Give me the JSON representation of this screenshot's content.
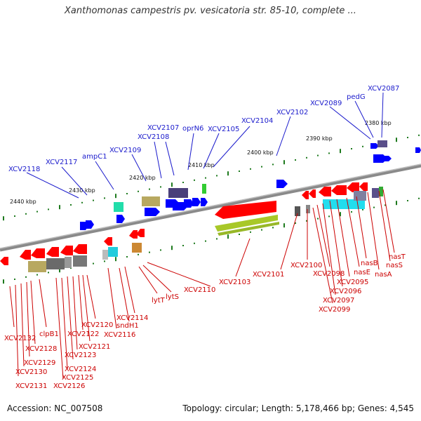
{
  "title": "Xanthomonas campestris pv. vesicatoria str. 85-10, complete ...",
  "footer": {
    "accession": "Accession: NC_007508",
    "summary": "Topology: circular; Length: 5,178,466 bp; Genes: 4,545"
  },
  "kbp_labels": [
    "2380 kbp",
    "2390 kbp",
    "2400 kbp",
    "2410 kbp",
    "2420 kbp",
    "2430 kbp",
    "2440 kbp"
  ],
  "forward_genes": [
    "XCV2087",
    "pedG",
    "XCV2089",
    "XCV2102",
    "XCV2104",
    "XCV2105",
    "oprN6",
    "XCV2107",
    "XCV2108",
    "XCV2109",
    "ampC1",
    "XCV2117",
    "XCV2118"
  ],
  "reverse_genes": [
    "nasT",
    "nasS",
    "nasA",
    "nasB",
    "nasE",
    "XCV2095",
    "XCV2096",
    "XCV2097",
    "XCV2098",
    "XCV2099",
    "XCV2100",
    "XCV2101",
    "XCV2103",
    "XCV2110",
    "lytS",
    "lytT",
    "XCV2114",
    "sndH1",
    "XCV2116",
    "XCV2120",
    "XCV2121",
    "XCV2122",
    "XCV2123",
    "XCV2124",
    "XCV2125",
    "XCV2126",
    "clpB1",
    "XCV2128",
    "XCV2129",
    "XCV2130",
    "XCV2131",
    "XCV2132"
  ],
  "colors": {
    "forward_label": "#1a1acc",
    "reverse_label": "#cc0000",
    "backbone": "#808080",
    "forward_arrow": "#0000ff",
    "reverse_arrow": "#ff0000",
    "tick": "#1e7a1e"
  }
}
